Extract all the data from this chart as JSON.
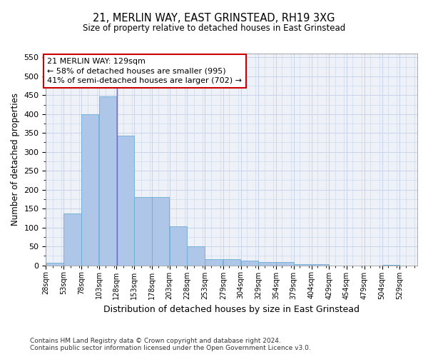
{
  "title": "21, MERLIN WAY, EAST GRINSTEAD, RH19 3XG",
  "subtitle": "Size of property relative to detached houses in East Grinstead",
  "xlabel": "Distribution of detached houses by size in East Grinstead",
  "ylabel": "Number of detached properties",
  "footer_line1": "Contains HM Land Registry data © Crown copyright and database right 2024.",
  "footer_line2": "Contains public sector information licensed under the Open Government Licence v3.0.",
  "property_sqm": 129,
  "annotation_line1": "21 MERLIN WAY: 129sqm",
  "annotation_line2": "← 58% of detached houses are smaller (995)",
  "annotation_line3": "41% of semi-detached houses are larger (702) →",
  "bin_starts": [
    28,
    53,
    78,
    103,
    128,
    153,
    178,
    203,
    228,
    253,
    279,
    304,
    329,
    354,
    379,
    404,
    429,
    454,
    479,
    504,
    529
  ],
  "bar_heights": [
    7,
    138,
    400,
    447,
    343,
    180,
    180,
    103,
    50,
    17,
    17,
    12,
    8,
    8,
    3,
    3,
    0,
    0,
    0,
    1,
    0
  ],
  "bar_color": "#aec6e8",
  "bar_edge_color": "#6aadd5",
  "vline_color": "#7070cc",
  "annotation_box_color": "#cc0000",
  "grid_color": "#c8d4e8",
  "bg_color": "#eef2f8",
  "ylim": [
    0,
    560
  ],
  "yticks": [
    0,
    50,
    100,
    150,
    200,
    250,
    300,
    350,
    400,
    450,
    500,
    550
  ]
}
